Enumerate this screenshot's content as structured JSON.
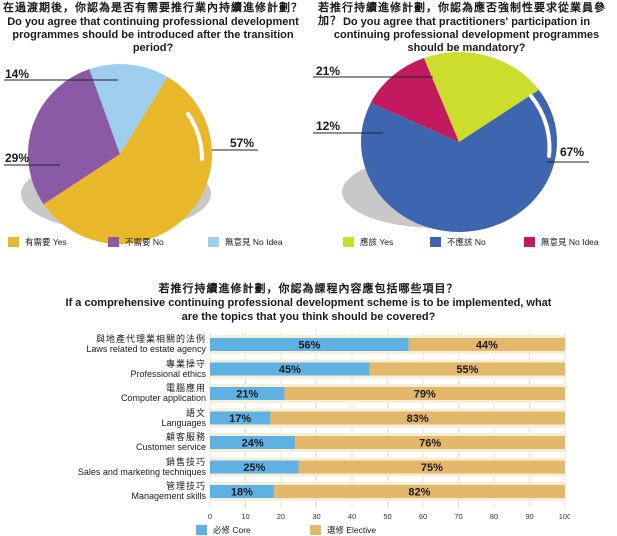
{
  "colors": {
    "yellow": "#e8b82a",
    "purple": "#8a5aa6",
    "lightblue": "#9fcdee",
    "lime": "#cddd2e",
    "blue": "#3e65b0",
    "magenta": "#c2195f",
    "core": "#5db2e3",
    "elective": "#e4b86a",
    "track": "#f7eed7"
  },
  "chart_data": [
    {
      "type": "pie",
      "title": "在過渡期後，你認為是否有需要推行業內持續進修計劃？",
      "subtitle": "Do you agree that continuing professional development programmes should be introduced after the transition period?",
      "labels": [
        "有需要 Yes",
        "不需要 No",
        "無意見 No Idea"
      ],
      "values": [
        57,
        29,
        14
      ],
      "value_labels": [
        "57%",
        "29%",
        "14%"
      ],
      "legend": "bottom"
    },
    {
      "type": "pie",
      "title": "若推行持續進修計劃，你認為應否強制性要求從業員參加？",
      "subtitle": "Do you agree that practitioners' participation in continuing professional development programmes should be mandatory?",
      "labels": [
        "應該 Yes",
        "不應該 No",
        "無意見 No Idea"
      ],
      "values": [
        21,
        67,
        12
      ],
      "value_labels": [
        "21%",
        "67%",
        "12%"
      ],
      "legend": "bottom"
    },
    {
      "type": "bar",
      "orientation": "horizontal",
      "stacked": true,
      "title": "若推行持續進修計劃，你認為課程內容應包括哪些項目？",
      "subtitle": "If a comprehensive continuing professional development scheme is to be implemented, what are the topics that you think should be covered?",
      "categories": [
        {
          "zh": "與地產代理業相關的法例",
          "en": "Laws related to estate agency"
        },
        {
          "zh": "專業操守",
          "en": "Professional ethics"
        },
        {
          "zh": "電腦應用",
          "en": "Computer application"
        },
        {
          "zh": "語文",
          "en": "Languages"
        },
        {
          "zh": "顧客服務",
          "en": "Customer service"
        },
        {
          "zh": "銷售技巧",
          "en": "Sales and marketing techniques"
        },
        {
          "zh": "管理技巧",
          "en": "Management skills"
        }
      ],
      "series": [
        {
          "name": "必修 Core",
          "values": [
            56,
            45,
            21,
            17,
            24,
            25,
            18
          ]
        },
        {
          "name": "選修 Elective",
          "values": [
            44,
            55,
            79,
            83,
            76,
            75,
            82
          ]
        }
      ],
      "xlim": [
        0,
        100
      ],
      "xticks": [
        "0",
        "10",
        "20",
        "30",
        "40",
        "50",
        "60",
        "70",
        "80",
        "90",
        "100"
      ],
      "legend": "bottom-left"
    }
  ]
}
